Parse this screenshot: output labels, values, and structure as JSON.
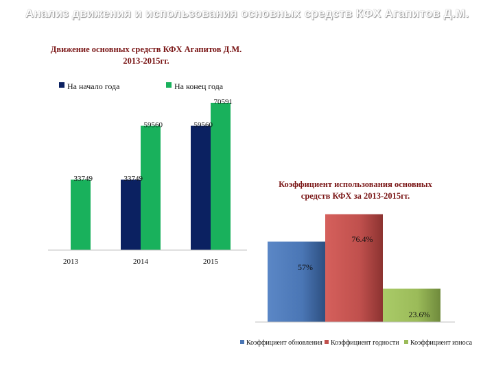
{
  "page_title": "Анализ движения и использования основных средств КФХ Агапитов Д.М.",
  "chart_data": [
    {
      "type": "bar",
      "title_lines": [
        "Движение основных средств КФХ Агапитов Д.М.",
        "2013-2015гг."
      ],
      "categories": [
        "2013",
        "2014",
        "2015"
      ],
      "series": [
        {
          "name": "На начало года",
          "values": [
            0,
            33749,
            59560
          ],
          "labels": [
            "",
            "33749",
            "59560"
          ],
          "color": "#0b2161"
        },
        {
          "name": "На конец года",
          "values": [
            33749,
            59560,
            70591
          ],
          "labels": [
            "33749",
            "59560",
            "70591"
          ],
          "color": "#19b15c"
        }
      ],
      "ylim": [
        0,
        70591
      ],
      "legend_position": "top",
      "grid": false
    },
    {
      "type": "bar",
      "title_lines": [
        "Коэффициент использования основных",
        "средств КФХ за 2013-2015гг."
      ],
      "categories": [
        ""
      ],
      "series": [
        {
          "name": "Коэффициент обновления",
          "values": [
            57
          ],
          "label": "57%",
          "color": "#4a76b5"
        },
        {
          "name": "Коэффициент годности",
          "values": [
            76.4
          ],
          "label": "76.4%",
          "color": "#c0504d"
        },
        {
          "name": "Коэффициент износа",
          "values": [
            23.6
          ],
          "label": "23.6%",
          "color": "#9bbb59"
        }
      ],
      "ylim": [
        0,
        100
      ],
      "legend_position": "bottom",
      "grid": false
    }
  ]
}
